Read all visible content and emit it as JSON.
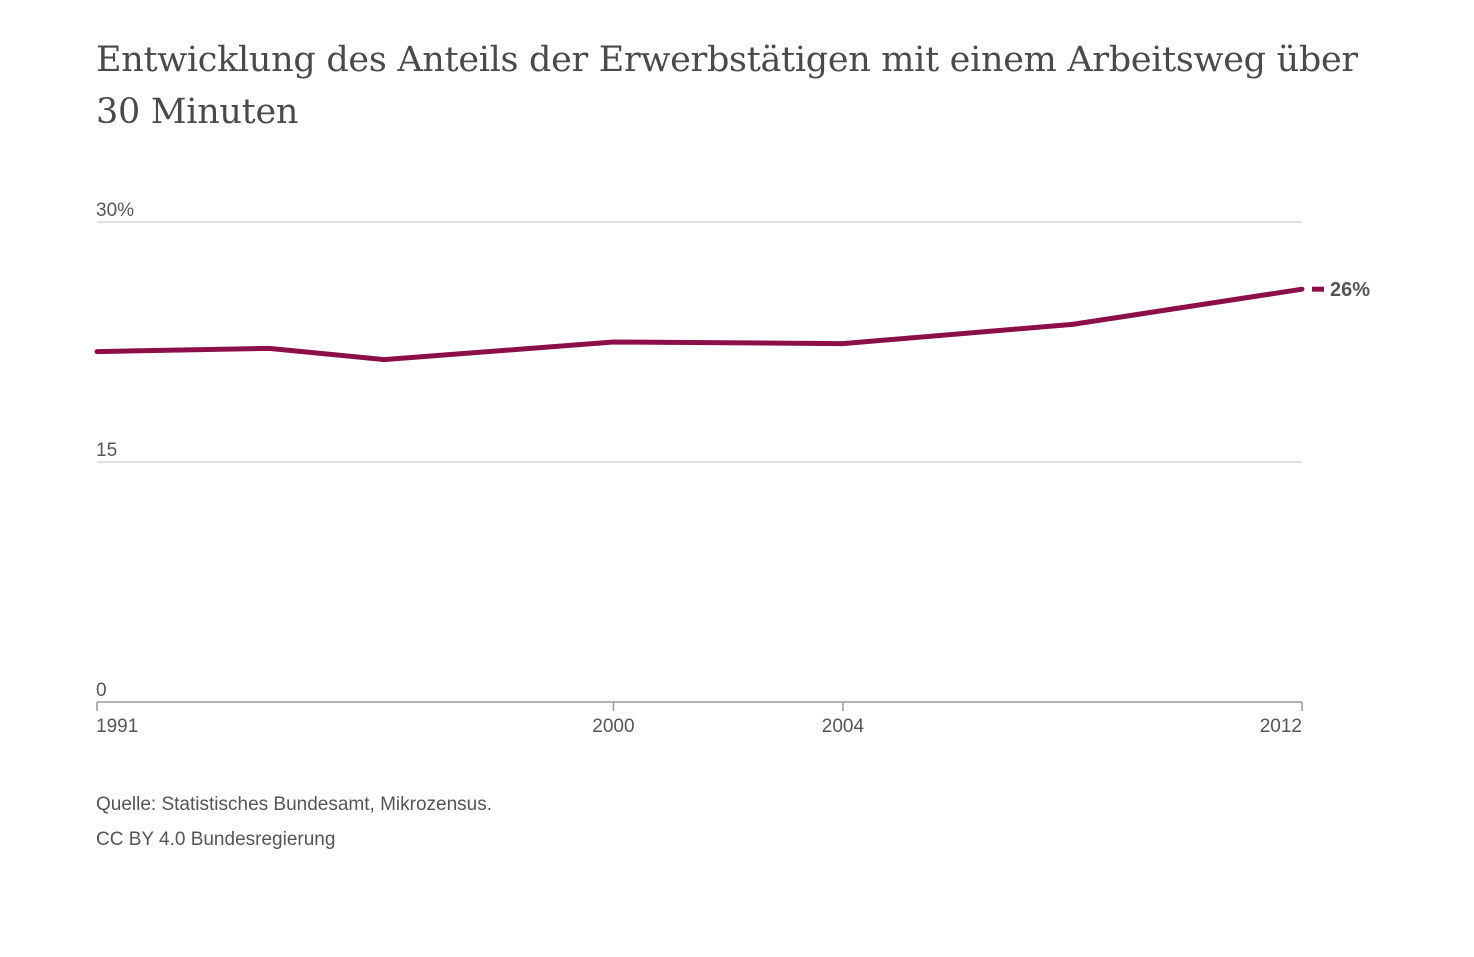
{
  "title": "Entwicklung des Anteils der Erwerbstätigen mit einem Arbeitsweg über 30 Minuten",
  "source": {
    "line1": "Quelle: Statistisches Bundesamt, Mikrozensus.",
    "line2": "CC BY 4.0 Bundesregierung"
  },
  "colors": {
    "series": "#8c0f4a",
    "grid": "#cccccc",
    "axis": "#999999",
    "text": "#555555"
  },
  "chart_data": {
    "type": "line",
    "title": "Entwicklung des Anteils der Erwerbstätigen mit einem Arbeitsweg über 30 Minuten",
    "xlabel": "",
    "ylabel": "",
    "xlim": [
      1991,
      2012
    ],
    "ylim": [
      0,
      30
    ],
    "y_ticks": [
      {
        "value": 0,
        "label": "0"
      },
      {
        "value": 15,
        "label": "15"
      },
      {
        "value": 30,
        "label": "30%"
      }
    ],
    "x_ticks": [
      {
        "value": 1991,
        "label": "1991"
      },
      {
        "value": 2000,
        "label": "2000"
      },
      {
        "value": 2004,
        "label": "2004"
      },
      {
        "value": 2012,
        "label": "2012"
      }
    ],
    "grid": true,
    "series": [
      {
        "x": [
          1991,
          1994,
          1996,
          2000,
          2004,
          2008,
          2012
        ],
        "y": [
          21.9,
          22.1,
          21.4,
          22.5,
          22.4,
          23.6,
          25.8
        ],
        "end_label": "26%"
      }
    ]
  }
}
